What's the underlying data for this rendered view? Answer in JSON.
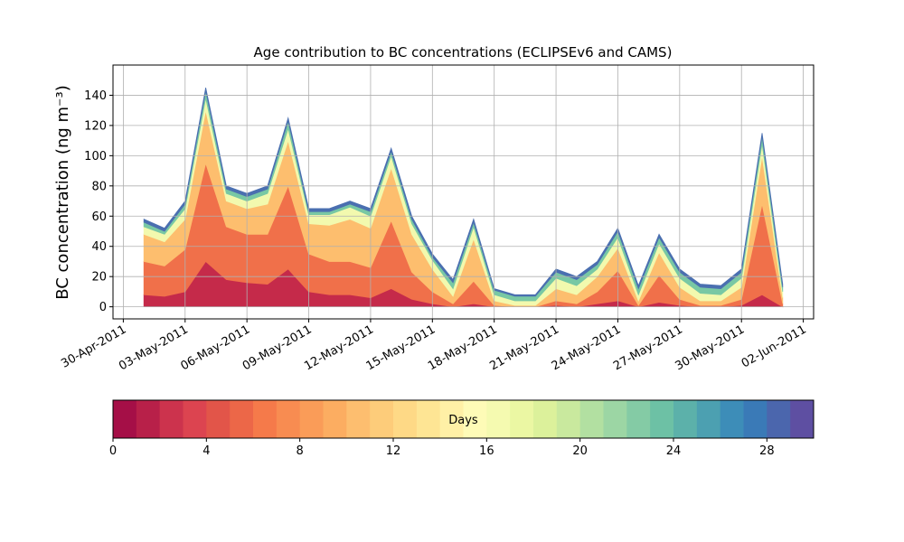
{
  "chart_data": {
    "type": "stacked_area",
    "title": "Age contribution to BC concentrations (ECLIPSEv6 and CAMS)",
    "y_label": "BC concentration (ng m⁻³)",
    "x": [
      "2011-05-01",
      "2011-05-02",
      "2011-05-03",
      "2011-05-04",
      "2011-05-05",
      "2011-05-06",
      "2011-05-07",
      "2011-05-08",
      "2011-05-09",
      "2011-05-10",
      "2011-05-11",
      "2011-05-12",
      "2011-05-13",
      "2011-05-14",
      "2011-05-15",
      "2011-05-16",
      "2011-05-17",
      "2011-05-18",
      "2011-05-19",
      "2011-05-20",
      "2011-05-21",
      "2011-05-22",
      "2011-05-23",
      "2011-05-24",
      "2011-05-25",
      "2011-05-26",
      "2011-05-27",
      "2011-05-28",
      "2011-05-29",
      "2011-05-30",
      "2011-05-31",
      "2011-06-01"
    ],
    "series": [
      {
        "color": "#c52a4a",
        "values": [
          8,
          7,
          10,
          30,
          18,
          16,
          15,
          25,
          10,
          8,
          8,
          6,
          12,
          5,
          2,
          0,
          2,
          0,
          0,
          0,
          1,
          0,
          2,
          4,
          0,
          3,
          1,
          0,
          0,
          1,
          8,
          0
        ]
      },
      {
        "color": "#f0704a",
        "values": [
          22,
          20,
          28,
          65,
          35,
          32,
          33,
          55,
          25,
          22,
          22,
          20,
          45,
          18,
          8,
          2,
          15,
          1,
          0,
          0,
          3,
          2,
          8,
          20,
          1,
          18,
          4,
          1,
          1,
          4,
          60,
          2
        ]
      },
      {
        "color": "#fdbe6e",
        "values": [
          18,
          16,
          20,
          35,
          17,
          17,
          20,
          30,
          20,
          24,
          28,
          26,
          35,
          25,
          15,
          5,
          28,
          3,
          1,
          1,
          8,
          6,
          10,
          15,
          3,
          15,
          8,
          3,
          3,
          8,
          32,
          4
        ]
      },
      {
        "color": "#f2f9ae",
        "values": [
          5,
          5,
          7,
          8,
          5,
          5,
          7,
          8,
          6,
          7,
          8,
          8,
          8,
          7,
          6,
          5,
          8,
          4,
          3,
          3,
          7,
          6,
          5,
          7,
          4,
          6,
          6,
          5,
          4,
          6,
          8,
          4
        ]
      },
      {
        "color": "#78c8a4",
        "values": [
          3,
          2,
          3,
          5,
          3,
          3,
          3,
          5,
          2,
          2,
          2,
          3,
          3,
          3,
          2,
          4,
          3,
          3,
          3,
          3,
          4,
          4,
          3,
          4,
          4,
          4,
          4,
          4,
          4,
          4,
          5,
          3
        ]
      },
      {
        "color": "#4a6fb0",
        "values": [
          2,
          2,
          2,
          2,
          2,
          2,
          2,
          2,
          2,
          2,
          2,
          2,
          2,
          2,
          2,
          2,
          2,
          1,
          1,
          1,
          2,
          2,
          2,
          2,
          2,
          2,
          2,
          2,
          2,
          2,
          2,
          2
        ]
      }
    ],
    "xlim": [
      "2011-04-29T12:00:00Z",
      "2011-06-02T12:00:00Z"
    ],
    "xticks": [
      {
        "value": "2011-04-30",
        "label": "30-Apr-2011"
      },
      {
        "value": "2011-05-03",
        "label": "03-May-2011"
      },
      {
        "value": "2011-05-06",
        "label": "06-May-2011"
      },
      {
        "value": "2011-05-09",
        "label": "09-May-2011"
      },
      {
        "value": "2011-05-12",
        "label": "12-May-2011"
      },
      {
        "value": "2011-05-15",
        "label": "15-May-2011"
      },
      {
        "value": "2011-05-18",
        "label": "18-May-2011"
      },
      {
        "value": "2011-05-21",
        "label": "21-May-2011"
      },
      {
        "value": "2011-05-24",
        "label": "24-May-2011"
      },
      {
        "value": "2011-05-27",
        "label": "27-May-2011"
      },
      {
        "value": "2011-05-30",
        "label": "30-May-2011"
      },
      {
        "value": "2011-06-02",
        "label": "02-Jun-2011"
      }
    ],
    "ylim": [
      -8,
      160
    ],
    "yticks": [
      0,
      20,
      40,
      60,
      80,
      100,
      120,
      140
    ],
    "grid": true,
    "colorbar": {
      "label": "Days",
      "lim": [
        0,
        30
      ],
      "ticks": [
        0,
        4,
        8,
        12,
        16,
        20,
        24,
        28
      ],
      "colors": [
        "#a50f47",
        "#b82049",
        "#cc334d",
        "#dc4450",
        "#e25549",
        "#ec6748",
        "#f57a4a",
        "#f88c51",
        "#fa9c58",
        "#fcad61",
        "#fdbe6f",
        "#fdcc7a",
        "#fed986",
        "#fee594",
        "#fff0a6",
        "#fefbb7",
        "#f5fab0",
        "#ebf7a3",
        "#dcf19b",
        "#c9e99e",
        "#b2e0a1",
        "#9cd6a4",
        "#84cba5",
        "#6dc1a5",
        "#5cb1aa",
        "#4ca0b1",
        "#3d8db8",
        "#3a7ab7",
        "#4b66ad",
        "#5e4fa2"
      ]
    }
  }
}
